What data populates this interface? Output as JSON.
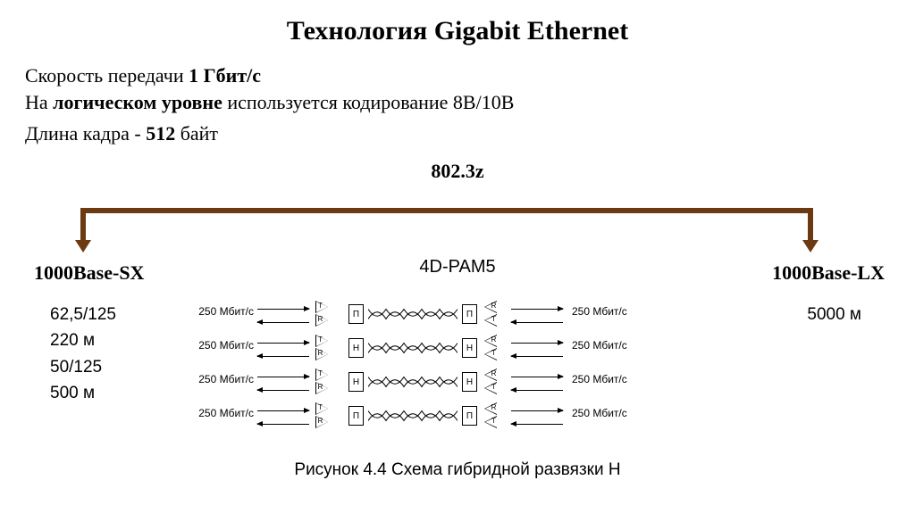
{
  "title": "Технология Gigabit Ethernet",
  "intro": {
    "line1_pre": "Скорость передачи ",
    "line1_bold": "1 Гбит/с",
    "line2_pre": "На ",
    "line2_bold": "логическом уровне",
    "line2_post": " используется кодирование 8В/10В",
    "line3_pre": "Длина кадра - ",
    "line3_bold": "512",
    "line3_post": " байт"
  },
  "standard": "802.3z",
  "bracket_color": "#6b3a12",
  "modulation": "4D-PAM5",
  "sx": {
    "label": "1000Base-SX",
    "specs": [
      "62,5/125",
      "220 м",
      "50/125",
      "500 м"
    ]
  },
  "lx": {
    "label": "1000Base-LX",
    "specs": [
      "5000  м"
    ]
  },
  "pairs": {
    "rate_label": "250 Мбит/с",
    "rows": [
      {
        "box": "П",
        "t_left": "T",
        "r_left": "R",
        "t_right": "R",
        "r_right": "T"
      },
      {
        "box": "Н",
        "t_left": "T",
        "r_left": "R",
        "t_right": "R",
        "r_right": "T"
      },
      {
        "box": "Н",
        "t_left": "T",
        "r_left": "R",
        "t_right": "R",
        "r_right": "T"
      },
      {
        "box": "П",
        "t_left": "T",
        "r_left": "R",
        "t_right": "R",
        "r_right": "T"
      }
    ]
  },
  "caption": "Рисунок 4.4 Схема гибридной развязки Н",
  "colors": {
    "text": "#000000",
    "bg": "#ffffff"
  },
  "fonts": {
    "title_size": 30,
    "body_size": 22,
    "small": 12
  }
}
